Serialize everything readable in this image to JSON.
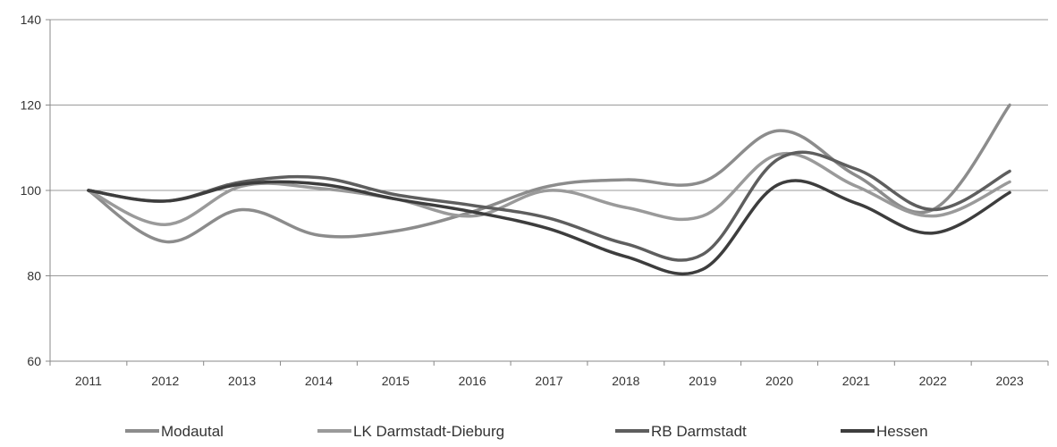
{
  "chart_data": {
    "type": "line",
    "title": "",
    "xlabel": "",
    "ylabel": "",
    "categories": [
      "2011",
      "2012",
      "2013",
      "2014",
      "2015",
      "2016",
      "2017",
      "2018",
      "2019",
      "2020",
      "2021",
      "2022",
      "2023"
    ],
    "ylim": [
      60,
      140
    ],
    "yticks": [
      60,
      80,
      100,
      120,
      140
    ],
    "grid": true,
    "smooth": true,
    "legend": "bottom",
    "series": [
      {
        "name": "Modautal",
        "color": "#8c8c8c",
        "values": [
          100,
          88,
          95.5,
          89.5,
          90.5,
          95,
          101,
          102.5,
          102,
          114,
          103.5,
          95.5,
          120
        ]
      },
      {
        "name": "LK Darmstadt-Dieburg",
        "color": "#9a9a9a",
        "values": [
          100,
          92,
          101,
          100.5,
          98,
          94,
          100,
          96,
          94,
          108.5,
          101,
          94,
          102
        ]
      },
      {
        "name": "RB Darmstadt",
        "color": "#5e5e5e",
        "values": [
          100,
          97.5,
          102,
          103,
          99,
          96.5,
          93.5,
          87.5,
          85,
          107.5,
          105,
          95.5,
          104.5
        ]
      },
      {
        "name": "Hessen",
        "color": "#3d3d3d",
        "values": [
          100,
          97.5,
          101.5,
          101.5,
          98,
          95,
          91,
          84.5,
          81.5,
          101.5,
          97,
          90,
          99.5
        ]
      }
    ]
  }
}
